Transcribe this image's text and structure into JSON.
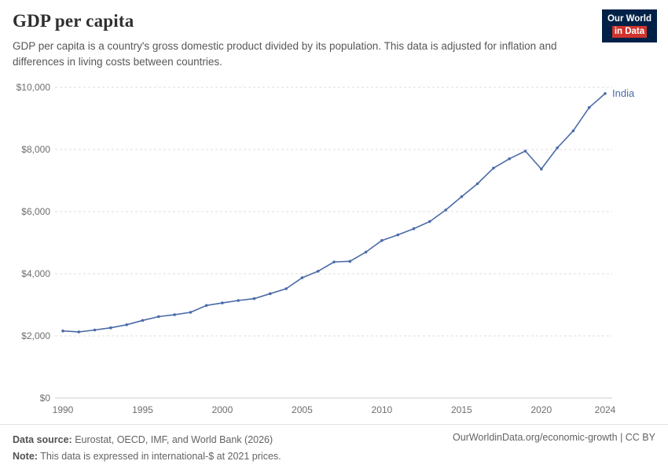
{
  "header": {
    "title": "GDP per capita",
    "subtitle": "GDP per capita is a country's gross domestic product divided by its population. This data is adjusted for inflation and differences in living costs between countries.",
    "logo": {
      "line1": "Our World",
      "line2": "in Data"
    }
  },
  "chart_data": {
    "type": "line",
    "title": "GDP per capita",
    "x": [
      1990,
      1991,
      1992,
      1993,
      1994,
      1995,
      1996,
      1997,
      1998,
      1999,
      2000,
      2001,
      2002,
      2003,
      2004,
      2005,
      2006,
      2007,
      2008,
      2009,
      2010,
      2011,
      2012,
      2013,
      2014,
      2015,
      2016,
      2017,
      2018,
      2019,
      2020,
      2021,
      2022,
      2023,
      2024
    ],
    "series": [
      {
        "name": "India",
        "color": "#4b6ba7",
        "values": [
          2160,
          2130,
          2190,
          2260,
          2360,
          2500,
          2620,
          2680,
          2760,
          2980,
          3060,
          3140,
          3200,
          3360,
          3520,
          3870,
          4080,
          4380,
          4400,
          4700,
          5070,
          5250,
          5450,
          5680,
          6050,
          6480,
          6900,
          7400,
          7700,
          7950,
          7370,
          8050,
          8600,
          9350,
          9800
        ]
      }
    ],
    "x_range": [
      1990,
      2024
    ],
    "ylim": [
      0,
      10000
    ],
    "yticks": [
      0,
      2000,
      4000,
      6000,
      8000,
      10000
    ],
    "ytick_labels": [
      "$0",
      "$2,000",
      "$4,000",
      "$6,000",
      "$8,000",
      "$10,000"
    ],
    "xticks": [
      1990,
      1995,
      2000,
      2005,
      2010,
      2015,
      2020,
      2024
    ],
    "grid": true,
    "legend_position": "line-end-label"
  },
  "footer": {
    "source_label": "Data source:",
    "source_text": " Eurostat, OECD, IMF, and World Bank (2026)",
    "note_label": "Note:",
    "note_text": " This data is expressed in international-$ at 2021 prices.",
    "link": "OurWorldinData.org/economic-growth | CC BY"
  }
}
